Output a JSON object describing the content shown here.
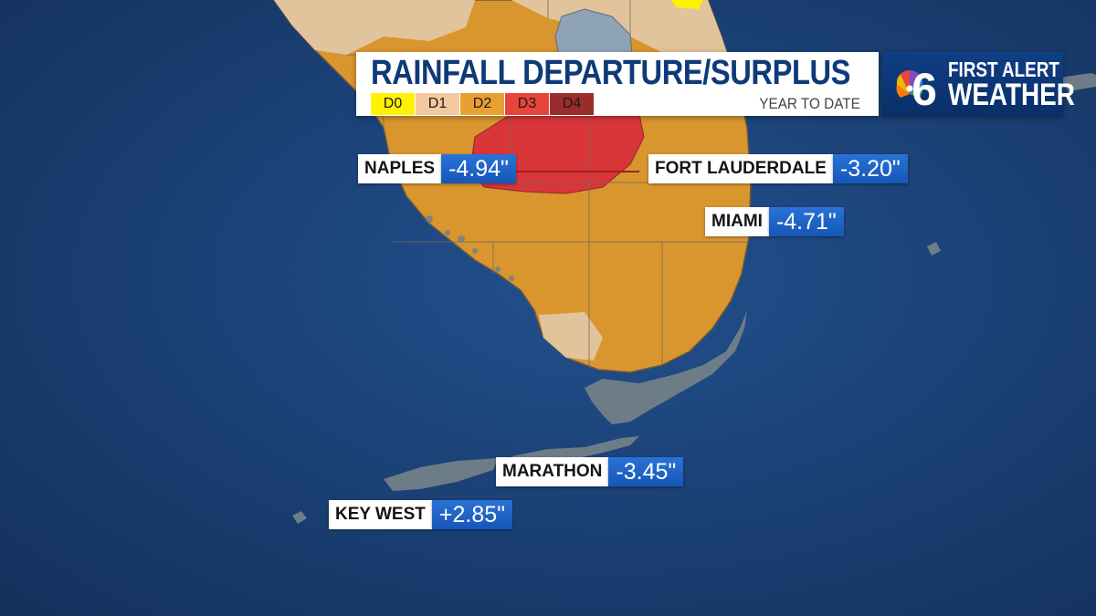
{
  "title_card": {
    "title": "RAINFALL DEPARTURE/SURPLUS",
    "subtitle": "YEAR TO DATE",
    "legend": [
      {
        "label": "D0",
        "color": "#fff200"
      },
      {
        "label": "D1",
        "color": "#f4c9a0"
      },
      {
        "label": "D2",
        "color": "#e8a033"
      },
      {
        "label": "D3",
        "color": "#e8443a"
      },
      {
        "label": "D4",
        "color": "#9b2c2c"
      }
    ]
  },
  "logo": {
    "line1": "FIRST ALERT",
    "line2": "WEATHER",
    "channel": "6",
    "peacock_icon": "nbc-peacock-icon"
  },
  "cities": [
    {
      "name": "NAPLES",
      "value": "-4.94\""
    },
    {
      "name": "FORT LAUDERDALE",
      "value": "-3.20\""
    },
    {
      "name": "MIAMI",
      "value": "-4.71\""
    },
    {
      "name": "MARATHON",
      "value": "-3.45\""
    },
    {
      "name": "KEY WEST",
      "value": "+2.85\""
    }
  ],
  "colors": {
    "ocean": "#1a3f73",
    "title_blue": "#0e3a78",
    "value_blue": "#1d63c8",
    "land_d1": "#e2c49c",
    "land_d2": "#d9962f",
    "land_d3": "#d9363a"
  }
}
